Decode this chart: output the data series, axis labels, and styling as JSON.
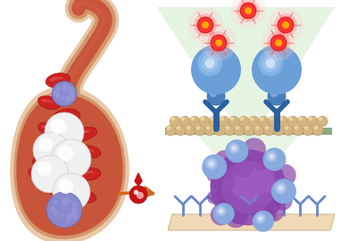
{
  "bg_color": "#ffffff",
  "vessel_outer": "#e8c8a8",
  "vessel_wall": "#d4956a",
  "vessel_inner": "#c8553a",
  "vessel_inner_light": "#d96650",
  "arrow_color": "#d2691e",
  "blood_drop_color": "#cc1111",
  "bead_color": "#d4b483",
  "bead_highlight": "#f0dca0",
  "antibody_blue": "#4a7fc0",
  "antibody_blue_dark": "#2a5f9f",
  "sphere_color": "#6a9fd8",
  "sphere_highlight": "#a0c8f0",
  "fluor_outer": "#ffaaaa",
  "fluor_mid": "#ff4444",
  "fluor_core": "#dd1111",
  "fluor_center": "#ff8800",
  "light_cone": "#d0ead0",
  "tumor_body": "#9955bb",
  "tumor_bump": "#8844aa",
  "tumor_light": "#aa66cc",
  "tc_bead": "#88aade",
  "tc_bead_hi": "#bbccee",
  "platform_color": "#f0d9b5",
  "platform_edge": "#d0b995",
  "y_antibody_color": "#6688cc",
  "surface_bar": "#c8b870",
  "surface_bar_edge": "#a89850",
  "surface_line": "#88aa88",
  "rbc_color": "#cc2222",
  "rbc_dark": "#991111",
  "wbc_color": "#f0f0f0",
  "wbc_edge": "#cccccc",
  "platelet_color": "#8888cc",
  "platelet_edge": "#6666aa"
}
